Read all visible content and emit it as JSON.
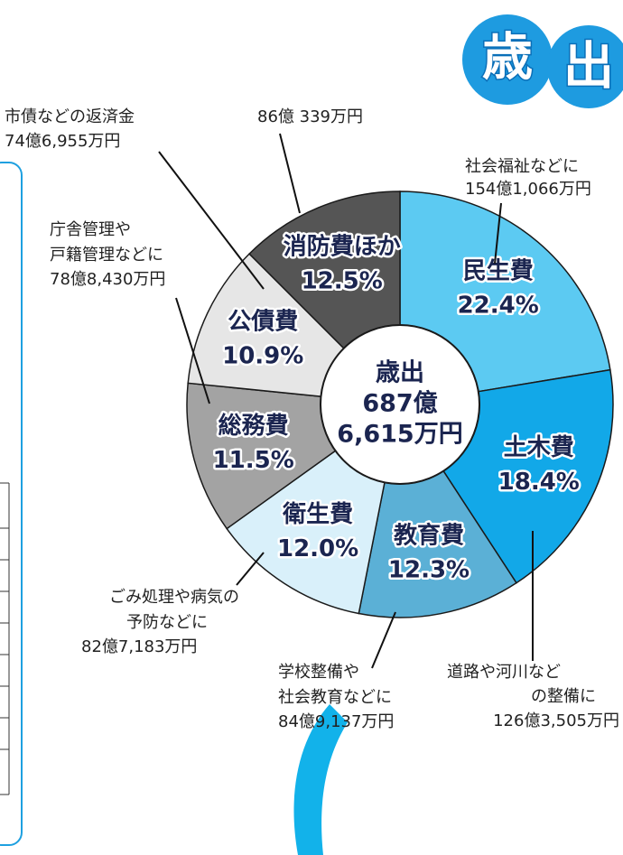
{
  "chart_data": {
    "type": "pie",
    "badge": [
      "歳",
      "出"
    ],
    "center_label": [
      "歳出",
      "687億",
      "6,615万円"
    ],
    "categories": [
      "民生費",
      "土木費",
      "教育費",
      "衛生費",
      "総務費",
      "公債費",
      "消防費ほか"
    ],
    "values": [
      22.4,
      18.4,
      12.3,
      12.0,
      11.5,
      10.9,
      12.5
    ],
    "value_labels": [
      "22.4%",
      "18.4%",
      "12.3%",
      "12.0%",
      "11.5%",
      "10.9%",
      "12.5%"
    ],
    "colors": [
      "#5ccaf2",
      "#12a8e8",
      "#5bb0d6",
      "#d9f0fa",
      "#a3a3a3",
      "#e6e6e6",
      "#555555"
    ],
    "descriptions": [
      [
        "社会福祉などに",
        "154億1,066万円"
      ],
      [
        "道路や河川など",
        "の整備に",
        "126億3,505万円"
      ],
      [
        "学校整備や",
        "社会教育などに",
        "84億9,137万円"
      ],
      [
        "ごみ処理や病気の",
        "予防などに",
        "82億7,183万円"
      ],
      [
        "庁舎管理や",
        "戸籍管理などに",
        "78億8,430万円"
      ],
      [
        "市債などの返済金",
        "74億6,955万円"
      ],
      [
        "86億 339万円"
      ]
    ]
  }
}
